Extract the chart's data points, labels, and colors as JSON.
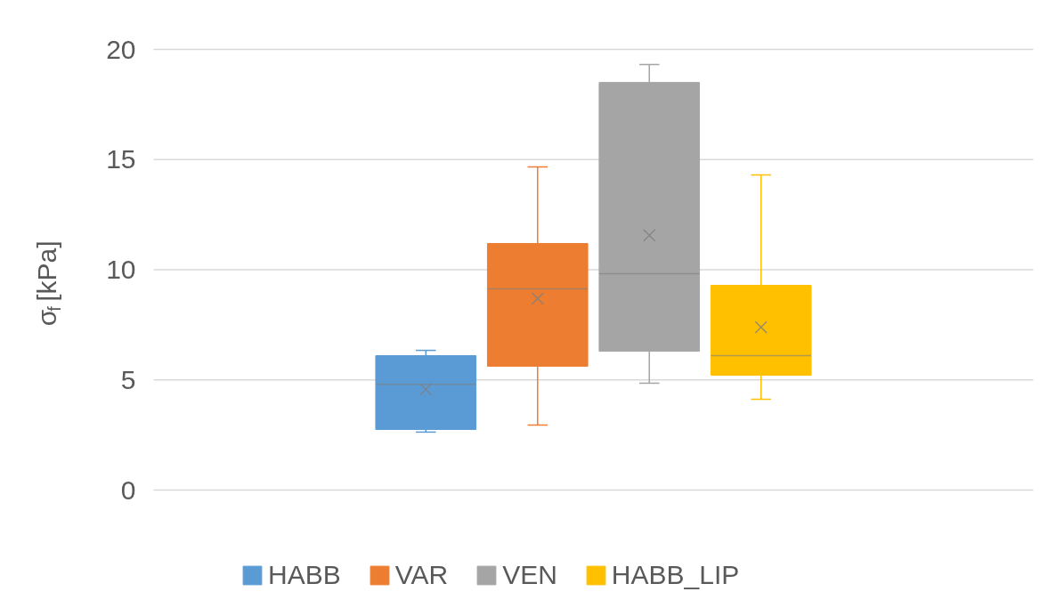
{
  "chart_data": {
    "type": "box",
    "ylabel": "σ$_{f}$ [kPa]",
    "categories": [
      null
    ],
    "ylim": [
      0,
      20
    ],
    "yticks": [
      0,
      5,
      10,
      15,
      20
    ],
    "grid": "y",
    "legend": "bottom",
    "tick_labels": "y",
    "series": [
      {
        "name": "HABB",
        "color": "#5b9bd5",
        "boxes": [
          {
            "low": 2.63,
            "q1": 2.75,
            "median": 4.8,
            "q3": 6.1,
            "high": 6.34,
            "mean": 4.57
          }
        ]
      },
      {
        "name": "VAR",
        "color": "#ed7d31",
        "boxes": [
          {
            "low": 2.95,
            "q1": 5.62,
            "median": 9.13,
            "q3": 11.19,
            "high": 14.67,
            "mean": 8.69
          }
        ]
      },
      {
        "name": "VEN",
        "color": "#a5a5a5",
        "boxes": [
          {
            "low": 4.85,
            "q1": 6.3,
            "median": 9.82,
            "q3": 18.5,
            "high": 19.31,
            "mean": 11.56
          }
        ]
      },
      {
        "name": "HABB_LIP",
        "color": "#ffc000",
        "boxes": [
          {
            "low": 4.12,
            "q1": 5.21,
            "median": 6.1,
            "q3": 9.29,
            "high": 14.3,
            "mean": 7.39
          }
        ]
      }
    ]
  }
}
